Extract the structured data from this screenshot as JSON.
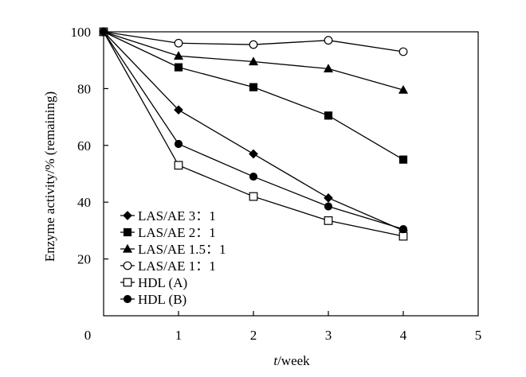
{
  "chart_data": {
    "type": "line",
    "xlabel": "t/week",
    "ylabel": "Enzyme activity/% (remaining)",
    "xlim": [
      0,
      5
    ],
    "ylim": [
      0,
      100
    ],
    "xticks": [
      0,
      1,
      2,
      3,
      4,
      5
    ],
    "yticks": [
      20,
      40,
      60,
      80,
      100
    ],
    "grid": false,
    "legend_position": "bottom-left",
    "series": [
      {
        "name": "LAS/AE 3：1",
        "marker": "diamond-filled",
        "x": [
          0,
          1,
          2,
          3,
          4
        ],
        "y": [
          100,
          72.5,
          57,
          41.5,
          30
        ]
      },
      {
        "name": "LAS/AE 2：1",
        "marker": "square-filled",
        "x": [
          0,
          1,
          2,
          3,
          4
        ],
        "y": [
          100,
          87.5,
          80.5,
          70.5,
          55
        ]
      },
      {
        "name": "LAS/AE 1.5：1",
        "marker": "triangle-filled",
        "x": [
          0,
          1,
          2,
          3,
          4
        ],
        "y": [
          100,
          91.5,
          89.5,
          87,
          79.5
        ]
      },
      {
        "name": "LAS/AE 1：1",
        "marker": "circle-open",
        "x": [
          0,
          1,
          2,
          3,
          4
        ],
        "y": [
          100,
          96,
          95.5,
          97,
          93
        ]
      },
      {
        "name": "HDL (A)",
        "marker": "square-open",
        "x": [
          0,
          1,
          2,
          3,
          4
        ],
        "y": [
          100,
          53,
          42,
          33.5,
          28
        ]
      },
      {
        "name": "HDL (B)",
        "marker": "circle-filled",
        "x": [
          0,
          1,
          2,
          3,
          4
        ],
        "y": [
          100,
          60.5,
          49,
          38.5,
          30.5
        ]
      }
    ]
  }
}
